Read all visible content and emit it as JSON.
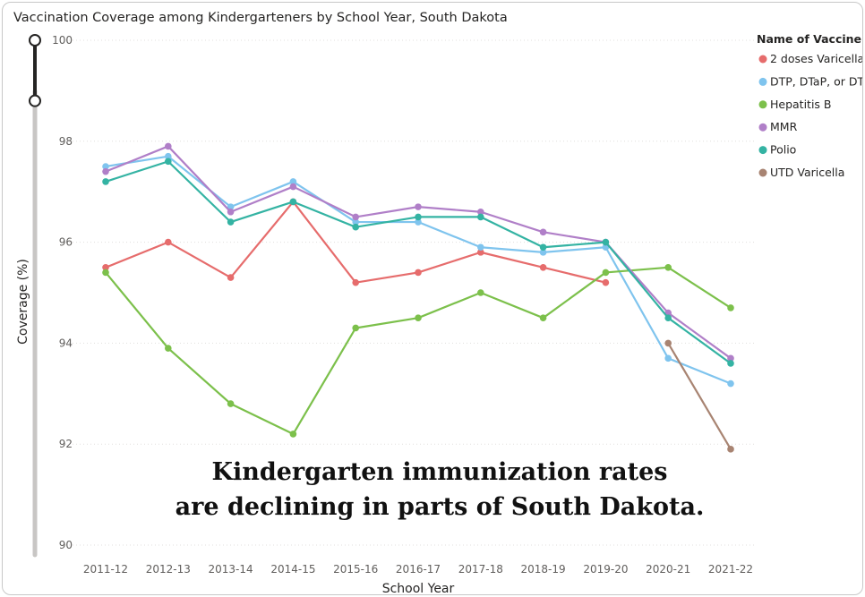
{
  "title": "Vaccination Coverage among Kindergarteners by School Year, South Dakota",
  "annotation": {
    "line1": "Kindergarten immunization rates",
    "line2": "are declining in parts of South Dakota."
  },
  "slider": {
    "range": [
      98.8,
      100
    ]
  },
  "chart_data": {
    "type": "line",
    "title": "Vaccination Coverage among Kindergarteners by School Year, South Dakota",
    "xlabel": "School Year",
    "ylabel": "Coverage (%)",
    "ylim": [
      90,
      100
    ],
    "yticks": [
      90,
      92,
      94,
      96,
      98,
      100
    ],
    "grid": true,
    "legend_title": "Name of Vaccine",
    "legend_position": "right",
    "categories": [
      "2011-12",
      "2012-13",
      "2013-14",
      "2014-15",
      "2015-16",
      "2016-17",
      "2017-18",
      "2018-19",
      "2019-20",
      "2020-21",
      "2021-22"
    ],
    "series": [
      {
        "name": "2 doses Varicella",
        "color": "#e66c6c",
        "values": [
          95.5,
          96.0,
          95.3,
          96.8,
          95.2,
          95.4,
          95.8,
          95.5,
          95.2,
          null,
          null
        ]
      },
      {
        "name": "DTP, DTaP, or DT",
        "color": "#7fc4ee",
        "values": [
          97.5,
          97.7,
          96.7,
          97.2,
          96.4,
          96.4,
          95.9,
          95.8,
          95.9,
          93.7,
          93.2
        ]
      },
      {
        "name": "Hepatitis B",
        "color": "#7cc04b",
        "values": [
          95.4,
          93.9,
          92.8,
          92.2,
          94.3,
          94.5,
          95.0,
          94.5,
          95.4,
          95.5,
          94.7
        ]
      },
      {
        "name": "MMR",
        "color": "#b07fc8",
        "values": [
          97.4,
          97.9,
          96.6,
          97.1,
          96.5,
          96.7,
          96.6,
          96.2,
          96.0,
          94.6,
          93.7
        ]
      },
      {
        "name": "Polio",
        "color": "#34b3a3",
        "values": [
          97.2,
          97.6,
          96.4,
          96.8,
          96.3,
          96.5,
          96.5,
          95.9,
          96.0,
          94.5,
          93.6
        ]
      },
      {
        "name": "UTD Varicella",
        "color": "#a88472",
        "values": [
          null,
          null,
          null,
          null,
          null,
          null,
          null,
          null,
          null,
          94.0,
          91.9
        ]
      }
    ]
  }
}
